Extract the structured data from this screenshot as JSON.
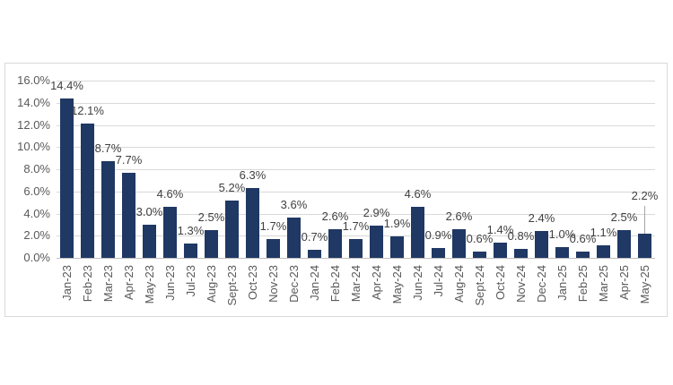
{
  "page": {
    "background_color": "#ffffff"
  },
  "chart_data": {
    "type": "bar",
    "title": "",
    "xlabel": "",
    "ylabel": "",
    "legend": "none",
    "grid": true,
    "categories": [
      "Jan-23",
      "Feb-23",
      "Mar-23",
      "Apr-23",
      "May-23",
      "Jun-23",
      "Jul-23",
      "Aug-23",
      "Sept-23",
      "Oct-23",
      "Nov-23",
      "Dec-23",
      "Jan-24",
      "Feb-24",
      "Mar-24",
      "Apr-24",
      "May-24",
      "Jun-24",
      "Jul-24",
      "Aug-24",
      "Sept-24",
      "Oct-24",
      "Nov-24",
      "Dec-24",
      "Jan-25",
      "Feb-25",
      "Mar-25",
      "Apr-25",
      "May-25"
    ],
    "values": [
      14.4,
      12.1,
      8.7,
      7.7,
      3.0,
      4.6,
      1.3,
      2.5,
      5.2,
      6.3,
      1.7,
      3.6,
      0.7,
      2.6,
      1.7,
      2.9,
      1.9,
      4.6,
      0.9,
      2.6,
      0.6,
      1.4,
      0.8,
      2.4,
      1.0,
      0.6,
      1.1,
      2.5,
      2.2
    ],
    "data_labels": [
      "14.4%",
      "12.1%",
      "8.7%",
      "7.7%",
      "3.0%",
      "4.6%",
      "1.3%",
      "2.5%",
      "5.2%",
      "6.3%",
      "1.7%",
      "3.6%",
      "0.7%",
      "2.6%",
      "1.7%",
      "2.9%",
      "1.9%",
      "4.6%",
      "0.9%",
      "2.6%",
      "0.6%",
      "1.4%",
      "0.8%",
      "2.4%",
      "1.0%",
      "0.6%",
      "1.1%",
      "2.5%",
      "2.2%"
    ],
    "moved_label_category": "May-25",
    "y_axis": {
      "min": 0,
      "max": 16,
      "tick_step": 2,
      "ticks": [
        {
          "value": 0,
          "label": "0.0%"
        },
        {
          "value": 2,
          "label": "2.0%"
        },
        {
          "value": 4,
          "label": "4.0%"
        },
        {
          "value": 6,
          "label": "6.0%"
        },
        {
          "value": 8,
          "label": "8.0%"
        },
        {
          "value": 10,
          "label": "10.0%"
        },
        {
          "value": 12,
          "label": "12.0%"
        },
        {
          "value": 14,
          "label": "14.0%"
        },
        {
          "value": 16,
          "label": "16.0%"
        }
      ]
    },
    "colors": {
      "bar": "#1f3864",
      "gridline": "#d9d9d9",
      "axis_line": "#bfbfbf",
      "frame_border": "#d9d9d9",
      "data_label_text": "#404040",
      "axis_text": "#595959",
      "leader_line": "#a6a6a6"
    }
  }
}
